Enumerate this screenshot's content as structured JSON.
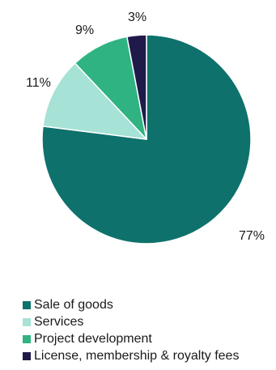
{
  "chart_data": {
    "type": "pie",
    "title": "",
    "slices": [
      {
        "label": "Sale of goods",
        "value": 77,
        "value_label": "77%",
        "color": "#0e716c"
      },
      {
        "label": "Services",
        "value": 11,
        "value_label": "11%",
        "color": "#a6e2d5"
      },
      {
        "label": "Project development",
        "value": 9,
        "value_label": "9%",
        "color": "#2fb382"
      },
      {
        "label": "License, membership & royalty fees",
        "value": 3,
        "value_label": "3%",
        "color": "#1f1a4a"
      }
    ],
    "start_angle": "12 o'clock",
    "direction": "clockwise",
    "legend_position": "bottom-left"
  }
}
